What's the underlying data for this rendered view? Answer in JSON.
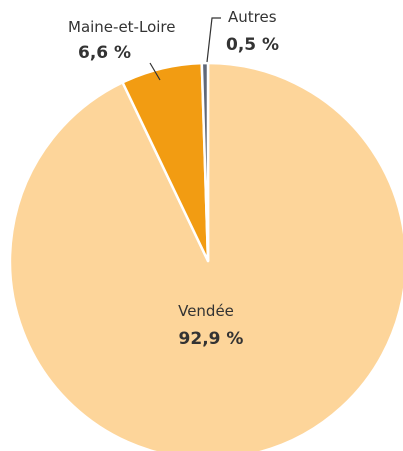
{
  "chart_data": {
    "type": "pie",
    "title": "",
    "slices": [
      {
        "label": "Vendée",
        "value_label": "92,9 %",
        "value": 92.9,
        "color": "#fdd59a"
      },
      {
        "label": "Maine-et-Loire",
        "value_label": "6,6 %",
        "value": 6.6,
        "color": "#f29c12"
      },
      {
        "label": "Autres",
        "value_label": "0,5 %",
        "value": 0.5,
        "color": "#606878"
      }
    ]
  }
}
